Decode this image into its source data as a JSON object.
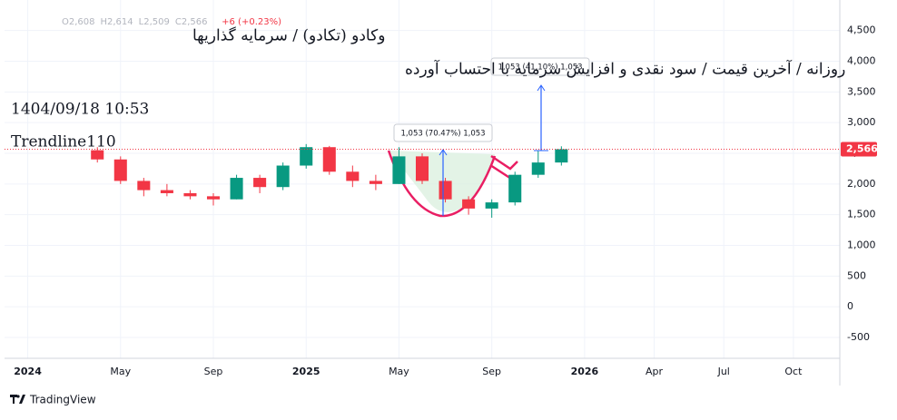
{
  "chart_data": {
    "type": "candlestick",
    "title": "وکادو (تکادو) / سرمایه گذاریها",
    "subtitle": "روزانه / آخرین قیمت / سود نقدی و افزایش سرمایه با احتساب آورده",
    "timestamp": "1404/09/18 10:53",
    "author": "Trendline110",
    "ohlc_header": [
      {
        "value": 2608,
        "label": "O2,608"
      },
      {
        "value": 2614,
        "label": "H2,614"
      },
      {
        "value": 2509,
        "label": "L2,509"
      },
      {
        "value": 2566,
        "label": "C2,566"
      }
    ],
    "change_label": "+6 (+0.23%)",
    "x": [
      "2024-04",
      "2024-05",
      "2024-06",
      "2024-07",
      "2024-08",
      "2024-09",
      "2024-10",
      "2024-11",
      "2024-12",
      "2025-01",
      "2025-02",
      "2025-03",
      "2025-04",
      "2025-05",
      "2025-06",
      "2025-07",
      "2025-08",
      "2025-09",
      "2025-10",
      "2025-11",
      "2025-12"
    ],
    "open": [
      2550,
      2400,
      2050,
      1900,
      1850,
      1800,
      1750,
      2100,
      1950,
      2300,
      2600,
      2200,
      2050,
      2000,
      2450,
      2050,
      1750,
      1600,
      1700,
      2150,
      2350
    ],
    "high": [
      2600,
      2450,
      2100,
      2000,
      1900,
      1850,
      2150,
      2150,
      2350,
      2650,
      2620,
      2300,
      2150,
      2600,
      2500,
      2100,
      1800,
      1750,
      2200,
      2550,
      2614
    ],
    "low": [
      2350,
      2000,
      1800,
      1800,
      1750,
      1650,
      1750,
      1850,
      1900,
      2250,
      2150,
      1950,
      1900,
      2000,
      2000,
      1700,
      1500,
      1450,
      1650,
      2100,
      2300
    ],
    "close": [
      2400,
      2050,
      1900,
      1850,
      1800,
      1750,
      2100,
      1950,
      2300,
      2600,
      2200,
      2050,
      2000,
      2450,
      2050,
      1750,
      1600,
      1700,
      2150,
      2350,
      2566
    ],
    "up_color": "#089981",
    "down_color": "#f23645",
    "xlim": [
      "2023-12",
      "2026-12"
    ],
    "xticks": [
      {
        "value": "2024-01",
        "label": "2024"
      },
      {
        "value": "2024-05",
        "label": "May"
      },
      {
        "value": "2024-09",
        "label": "Sep"
      },
      {
        "value": "2025-01",
        "label": "2025"
      },
      {
        "value": "2025-05",
        "label": "May"
      },
      {
        "value": "2025-09",
        "label": "Sep"
      },
      {
        "value": "2026-01",
        "label": "2026"
      },
      {
        "value": "2026-04",
        "label": "Apr"
      },
      {
        "value": "2026-07",
        "label": "Jul"
      },
      {
        "value": "2026-10",
        "label": "Oct"
      }
    ],
    "ylim": [
      -840,
      4820
    ],
    "yticks": [
      -500,
      0,
      500,
      {
        "value": 1000,
        "label": "1,000"
      },
      {
        "value": 1500,
        "label": "1,500"
      },
      {
        "value": 2000,
        "label": "2,000"
      },
      {
        "value": 2500,
        "label": "2,500"
      },
      {
        "value": 3000,
        "label": "3,000"
      },
      {
        "value": 3500,
        "label": "3,500"
      },
      {
        "value": 4000,
        "label": "4,000"
      },
      {
        "value": 4500,
        "label": "4,500"
      }
    ],
    "grid": true,
    "last_price": {
      "value": 2566,
      "label": "2,566"
    },
    "annotations": [
      "1,053 (70.47%) 1,053",
      "1,053 (41.10%) 1,053"
    ],
    "brand": "TradingView"
  }
}
